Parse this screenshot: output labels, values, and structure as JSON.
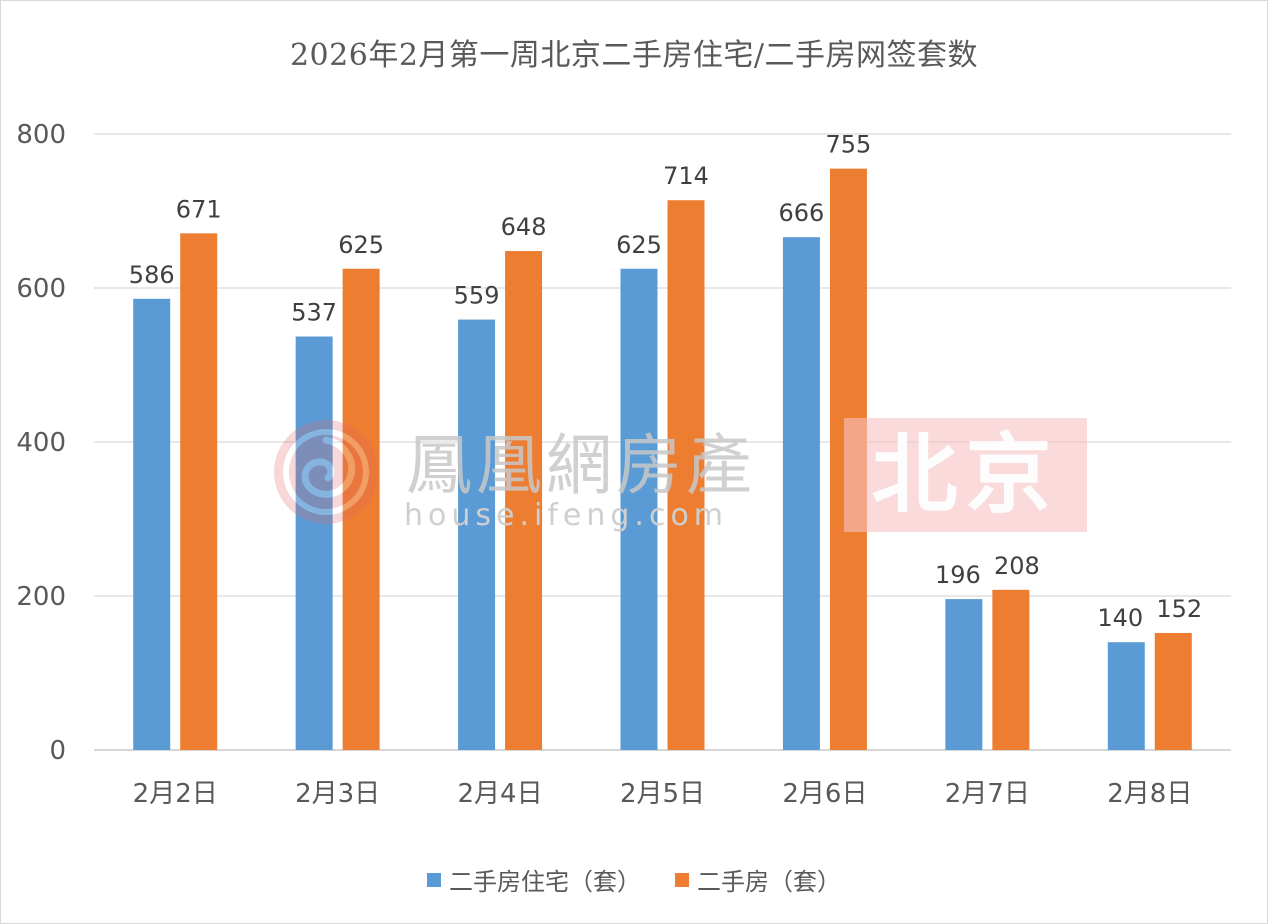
{
  "chart_data": {
    "type": "bar",
    "title": "2026年2月第一周北京二手房住宅/二手房网签套数",
    "categories": [
      "2月2日",
      "2月3日",
      "2月4日",
      "2月5日",
      "2月6日",
      "2月7日",
      "2月8日"
    ],
    "series": [
      {
        "name": "二手房住宅（套）",
        "color": "#5b9bd5",
        "values": [
          586,
          537,
          559,
          625,
          666,
          196,
          140
        ]
      },
      {
        "name": "二手房（套）",
        "color": "#ed7d31",
        "values": [
          671,
          625,
          648,
          714,
          755,
          208,
          152
        ]
      }
    ],
    "ylim": [
      0,
      800
    ],
    "yticks": [
      0,
      200,
      400,
      600,
      800
    ],
    "grid": true,
    "data_labels": true,
    "legend": "bottom-center"
  },
  "watermark": {
    "brand": "鳳凰網房產",
    "url": "house.ifeng.com",
    "city": "北京"
  }
}
